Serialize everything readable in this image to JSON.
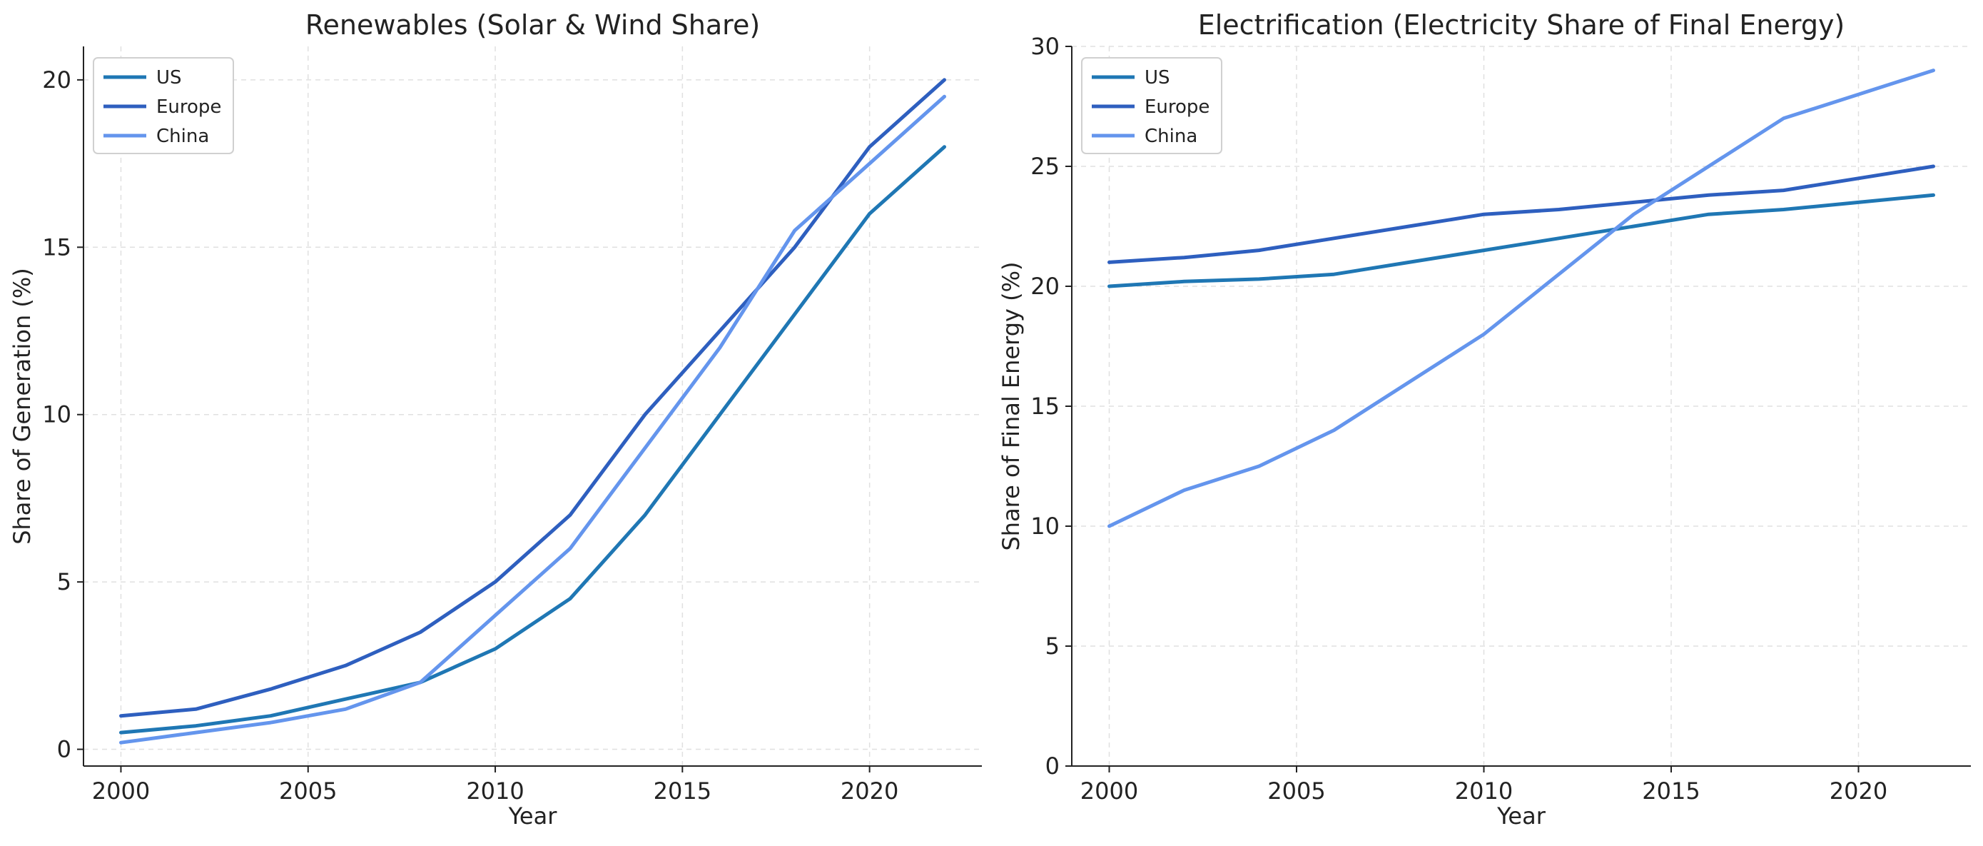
{
  "chart_data": [
    {
      "type": "line",
      "title": "Renewables (Solar & Wind Share)",
      "xlabel": "Year",
      "ylabel": "Share of Generation (%)",
      "xlim": [
        1999,
        2023
      ],
      "ylim": [
        -0.5,
        21
      ],
      "xticks": [
        2000,
        2005,
        2010,
        2015,
        2020
      ],
      "yticks": [
        0,
        5,
        10,
        15,
        20
      ],
      "grid": true,
      "legend_position": "top-left",
      "x": [
        2000,
        2002,
        2004,
        2006,
        2008,
        2010,
        2012,
        2014,
        2016,
        2018,
        2020,
        2022
      ],
      "series": [
        {
          "name": "US",
          "color": "#1f77b4",
          "values": [
            0.5,
            0.7,
            1.0,
            1.5,
            2.0,
            3.0,
            4.5,
            7.0,
            10.0,
            13.0,
            16.0,
            18.0
          ]
        },
        {
          "name": "Europe",
          "color": "#2e5fbf",
          "values": [
            1.0,
            1.2,
            1.8,
            2.5,
            3.5,
            5.0,
            7.0,
            10.0,
            12.5,
            15.0,
            18.0,
            20.0
          ]
        },
        {
          "name": "China",
          "color": "#6495ed",
          "values": [
            0.2,
            0.5,
            0.8,
            1.2,
            2.0,
            4.0,
            6.0,
            9.0,
            12.0,
            15.5,
            17.5,
            19.5
          ]
        }
      ]
    },
    {
      "type": "line",
      "title": "Electrification (Electricity Share of Final Energy)",
      "xlabel": "Year",
      "ylabel": "Share of Final Energy (%)",
      "xlim": [
        1999,
        2023
      ],
      "ylim": [
        0,
        30
      ],
      "xticks": [
        2000,
        2005,
        2010,
        2015,
        2020
      ],
      "yticks": [
        0,
        5,
        10,
        15,
        20,
        25,
        30
      ],
      "grid": true,
      "legend_position": "top-left",
      "x": [
        2000,
        2002,
        2004,
        2006,
        2008,
        2010,
        2012,
        2014,
        2016,
        2018,
        2020,
        2022
      ],
      "series": [
        {
          "name": "US",
          "color": "#1f77b4",
          "values": [
            20.0,
            20.2,
            20.3,
            20.5,
            21.0,
            21.5,
            22.0,
            22.5,
            23.0,
            23.2,
            23.5,
            23.8
          ]
        },
        {
          "name": "Europe",
          "color": "#2e5fbf",
          "values": [
            21.0,
            21.2,
            21.5,
            22.0,
            22.5,
            23.0,
            23.2,
            23.5,
            23.8,
            24.0,
            24.5,
            25.0
          ]
        },
        {
          "name": "China",
          "color": "#6495ed",
          "values": [
            10.0,
            11.5,
            12.5,
            14.0,
            16.0,
            18.0,
            20.5,
            23.0,
            25.0,
            27.0,
            28.0,
            29.0
          ]
        }
      ]
    }
  ]
}
